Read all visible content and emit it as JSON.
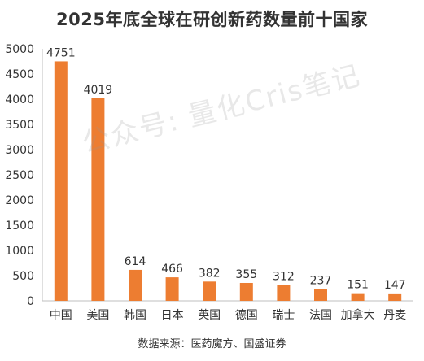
{
  "chart_data": {
    "type": "bar",
    "title": "2025年底全球在研创新药数量前十国家",
    "categories": [
      "中国",
      "美国",
      "韩国",
      "日本",
      "英国",
      "德国",
      "瑞士",
      "法国",
      "加拿大",
      "丹麦"
    ],
    "values": [
      4751,
      4019,
      614,
      466,
      382,
      355,
      312,
      237,
      151,
      147
    ],
    "value_labels": [
      "4751",
      "4019",
      "614",
      "466",
      "382",
      "355",
      "312",
      "237",
      "151",
      "147"
    ],
    "ylim": [
      0,
      5000
    ],
    "yticks": [
      0,
      500,
      1000,
      1500,
      2000,
      2500,
      3000,
      3500,
      4000,
      4500,
      5000
    ],
    "ytick_labels": [
      "0",
      "500",
      "1000",
      "1500",
      "2000",
      "2500",
      "3000",
      "3500",
      "4000",
      "4500",
      "5000"
    ],
    "grid": false,
    "legend": "none",
    "bar_color": "#ED7D31",
    "source": "数据来源：医药魔方、国盛证券",
    "watermark": "公众号: 量化Cris笔记"
  }
}
